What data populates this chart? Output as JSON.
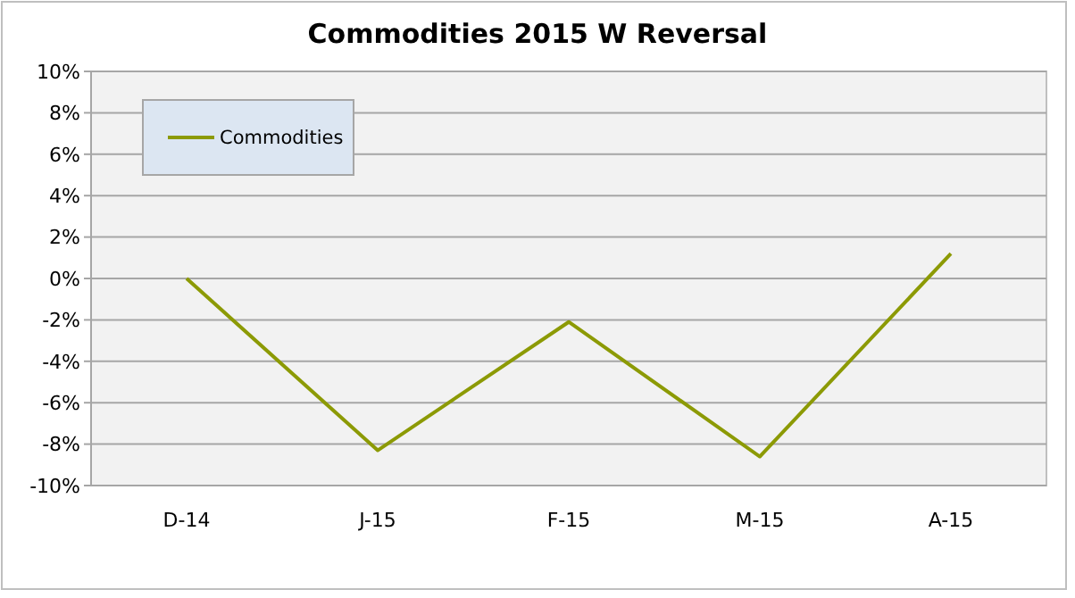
{
  "chart_data": {
    "type": "line",
    "title": "Commodities 2015 W Reversal",
    "categories": [
      "D-14",
      "J-15",
      "F-15",
      "M-15",
      "A-15"
    ],
    "series": [
      {
        "name": "Commodities",
        "color": "#8c9a05",
        "values": [
          0,
          -8.3,
          -2.1,
          -8.6,
          1.2
        ]
      }
    ],
    "ylim": [
      -10,
      10
    ],
    "yticks": [
      {
        "value": -10,
        "label": "-10%"
      },
      {
        "value": -8,
        "label": "-8%"
      },
      {
        "value": -6,
        "label": "-6%"
      },
      {
        "value": -4,
        "label": "-4%"
      },
      {
        "value": -2,
        "label": "-2%"
      },
      {
        "value": 0,
        "label": "0%"
      },
      {
        "value": 2,
        "label": "2%"
      },
      {
        "value": 4,
        "label": "4%"
      },
      {
        "value": 6,
        "label": "6%"
      },
      {
        "value": 8,
        "label": "8%"
      },
      {
        "value": 10,
        "label": "10%"
      }
    ],
    "grid": "y",
    "legend": "top left",
    "marker": "none",
    "line_style": "solid"
  }
}
